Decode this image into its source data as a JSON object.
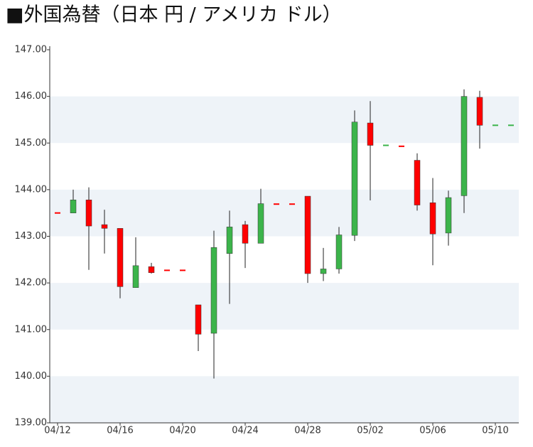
{
  "chart_data": {
    "type": "candlestick",
    "title": "■外国為替（日本 円 / アメリカ ドル）",
    "categories": [
      "04/12",
      null,
      null,
      null,
      "04/16",
      null,
      null,
      null,
      "04/20",
      null,
      null,
      null,
      "04/24",
      null,
      null,
      null,
      "04/28",
      null,
      null,
      null,
      "05/02",
      null,
      null,
      null,
      "05/06",
      null,
      null,
      null,
      "05/10",
      null
    ],
    "open": [
      143.5,
      143.5,
      143.78,
      143.25,
      143.17,
      141.9,
      142.35,
      142.27,
      142.27,
      141.53,
      140.92,
      142.63,
      143.25,
      142.85,
      143.69,
      143.69,
      143.86,
      142.2,
      142.3,
      143.02,
      145.43,
      144.95,
      144.93,
      144.63,
      143.72,
      143.07,
      143.87,
      145.98,
      145.38,
      145.38
    ],
    "high": [
      143.5,
      144.0,
      144.05,
      143.57,
      143.17,
      142.98,
      142.43,
      142.27,
      142.27,
      141.53,
      143.12,
      143.55,
      143.33,
      144.02,
      143.69,
      143.69,
      143.86,
      142.75,
      143.2,
      145.7,
      145.9,
      144.95,
      144.93,
      144.78,
      144.25,
      143.98,
      146.15,
      146.12,
      145.38,
      145.38
    ],
    "low": [
      143.5,
      143.5,
      142.28,
      142.63,
      141.67,
      141.9,
      142.2,
      142.27,
      142.27,
      140.54,
      139.95,
      141.55,
      142.32,
      142.85,
      143.69,
      143.69,
      142.0,
      142.04,
      142.2,
      142.9,
      143.77,
      144.95,
      144.93,
      143.55,
      142.38,
      142.8,
      143.5,
      144.88,
      145.38,
      145.38
    ],
    "close": [
      143.5,
      143.78,
      143.22,
      143.17,
      141.92,
      142.37,
      142.22,
      142.27,
      142.27,
      140.9,
      142.76,
      143.2,
      142.85,
      143.7,
      143.69,
      143.69,
      142.2,
      142.3,
      143.03,
      145.45,
      144.95,
      144.95,
      144.93,
      143.67,
      143.05,
      143.83,
      146.0,
      145.38,
      145.38,
      145.38
    ],
    "direction": [
      "down",
      "up",
      "down",
      "down",
      "down",
      "up",
      "down",
      "down",
      "down",
      "down",
      "up",
      "up",
      "down",
      "up",
      "down",
      "down",
      "down",
      "up",
      "up",
      "up",
      "down",
      "up",
      "down",
      "down",
      "down",
      "up",
      "up",
      "down",
      "up",
      "up"
    ],
    "up_color": "#3cb44b",
    "down_color": "#ff0000",
    "band_color": "#eef3f8",
    "ylim": [
      139,
      147
    ],
    "yticks": [
      {
        "value": 139,
        "label": "139.00"
      },
      {
        "value": 140,
        "label": "140.00"
      },
      {
        "value": 141,
        "label": "141.00"
      },
      {
        "value": 142,
        "label": "142.00"
      },
      {
        "value": 143,
        "label": "143.00"
      },
      {
        "value": 144,
        "label": "144.00"
      },
      {
        "value": 145,
        "label": "145.00"
      },
      {
        "value": 146,
        "label": "146.00"
      },
      {
        "value": 147,
        "label": "147.00"
      }
    ]
  }
}
